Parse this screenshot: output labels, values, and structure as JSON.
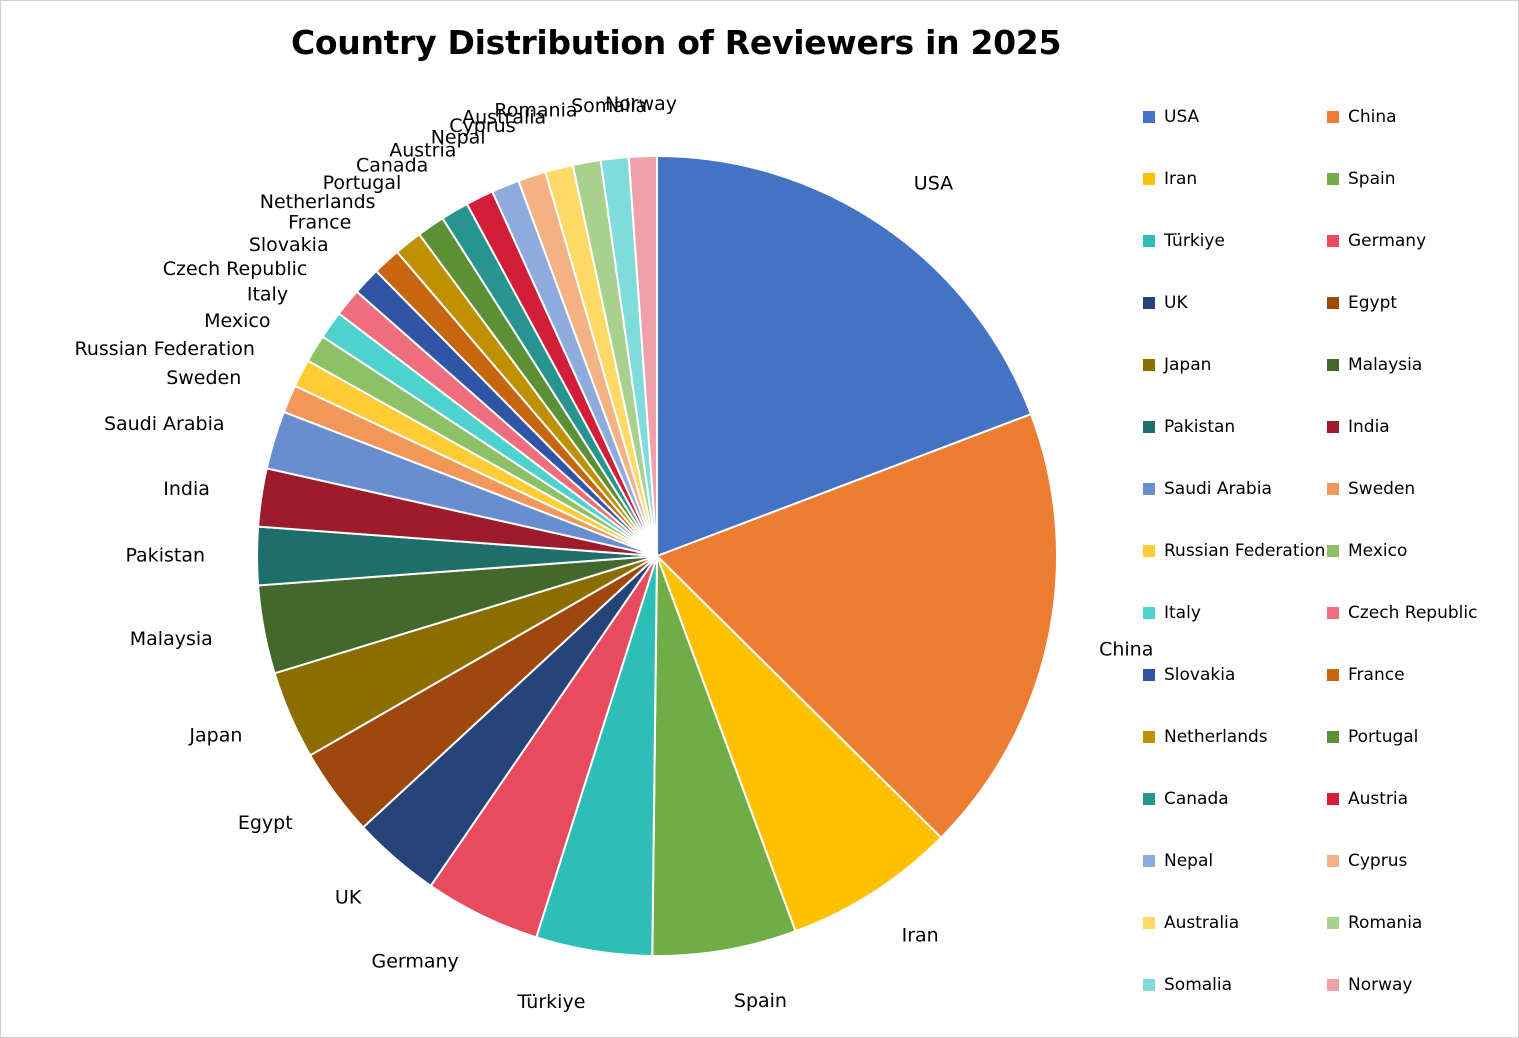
{
  "chart_data": {
    "type": "pie",
    "title": "Country Distribution of Reviewers in 2025",
    "legend_position": "right",
    "categories": [
      "USA",
      "China",
      "Iran",
      "Spain",
      "Türkiye",
      "Germany",
      "UK",
      "Egypt",
      "Japan",
      "Malaysia",
      "Pakistan",
      "India",
      "Saudi Arabia",
      "Sweden",
      "Russian Federation",
      "Mexico",
      "Italy",
      "Czech Republic",
      "Slovakia",
      "France",
      "Netherlands",
      "Portugal",
      "Canada",
      "Austria",
      "Nepal",
      "Cyprus",
      "Australia",
      "Romania",
      "Somalia",
      "Norway"
    ],
    "values": [
      20.5,
      19.4,
      7.4,
      6.2,
      5.0,
      5.0,
      3.8,
      3.8,
      3.8,
      3.8,
      2.5,
      2.5,
      2.5,
      1.2,
      1.2,
      1.2,
      1.2,
      1.2,
      1.2,
      1.2,
      1.2,
      1.2,
      1.2,
      1.2,
      1.2,
      1.2,
      1.2,
      1.2,
      1.2,
      1.2
    ],
    "colors": [
      "#4472C4",
      "#ED7D31",
      "#FFC000",
      "#70AD47",
      "#2EBEB8",
      "#E84A5F",
      "#264478",
      "#9E480E",
      "#8C6D00",
      "#43682B",
      "#1E6E6B",
      "#9E1B2C",
      "#698ED0",
      "#F1975A",
      "#FFCD33",
      "#8CC168",
      "#4DD2CE",
      "#EE6E7D",
      "#2F55A4",
      "#C8650F",
      "#BF9100",
      "#5B9134",
      "#26948F",
      "#D31E3A",
      "#8FAADC",
      "#F4B183",
      "#FFD966",
      "#A9D18E",
      "#7FDCDA",
      "#F0A0A8"
    ]
  }
}
